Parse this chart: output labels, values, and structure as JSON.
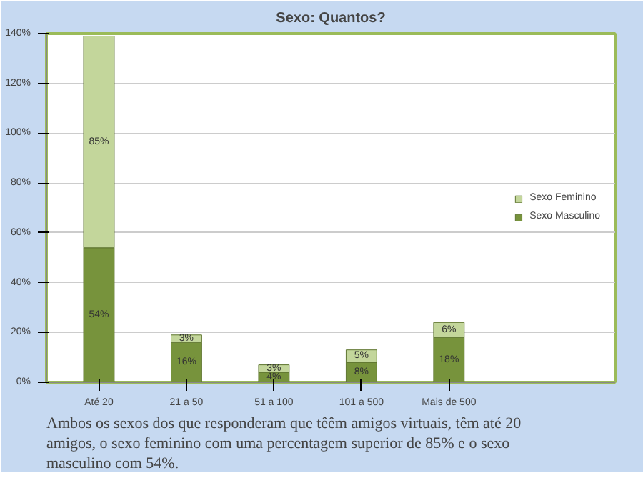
{
  "chart_data": {
    "type": "bar",
    "title": "Sexo: Quantos?",
    "stacked": true,
    "categories": [
      "Até 20",
      "21 a 50",
      "51 a 100",
      "101 a 500",
      "Mais de 500"
    ],
    "series": [
      {
        "name": "Sexo Masculino",
        "color": "#77933c",
        "values": [
          54,
          16,
          4,
          8,
          18
        ],
        "value_labels": [
          "54%",
          "16%",
          "4%",
          "8%",
          "18%"
        ]
      },
      {
        "name": "Sexo Feminino",
        "color": "#c3d69b",
        "values": [
          85,
          3,
          3,
          5,
          6
        ],
        "value_labels": [
          "85%",
          "3%",
          "3%",
          "5%",
          "6%"
        ]
      }
    ],
    "ylim": [
      0,
      140
    ],
    "yticks": [
      {
        "value": 0,
        "label": "0%"
      },
      {
        "value": 20,
        "label": "20%"
      },
      {
        "value": 40,
        "label": "40%"
      },
      {
        "value": 60,
        "label": "60%"
      },
      {
        "value": 80,
        "label": "80%"
      },
      {
        "value": 100,
        "label": "100%"
      },
      {
        "value": 120,
        "label": "120%"
      },
      {
        "value": 140,
        "label": "140%"
      }
    ],
    "grid": "y",
    "legend": "right",
    "annotations": [
      "Ambos os sexos dos que responderam que têêm amigos virtuais, têm até 20 amigos, o sexo feminino com uma percentagem superior de 85% e o sexo masculino com 54%."
    ]
  }
}
